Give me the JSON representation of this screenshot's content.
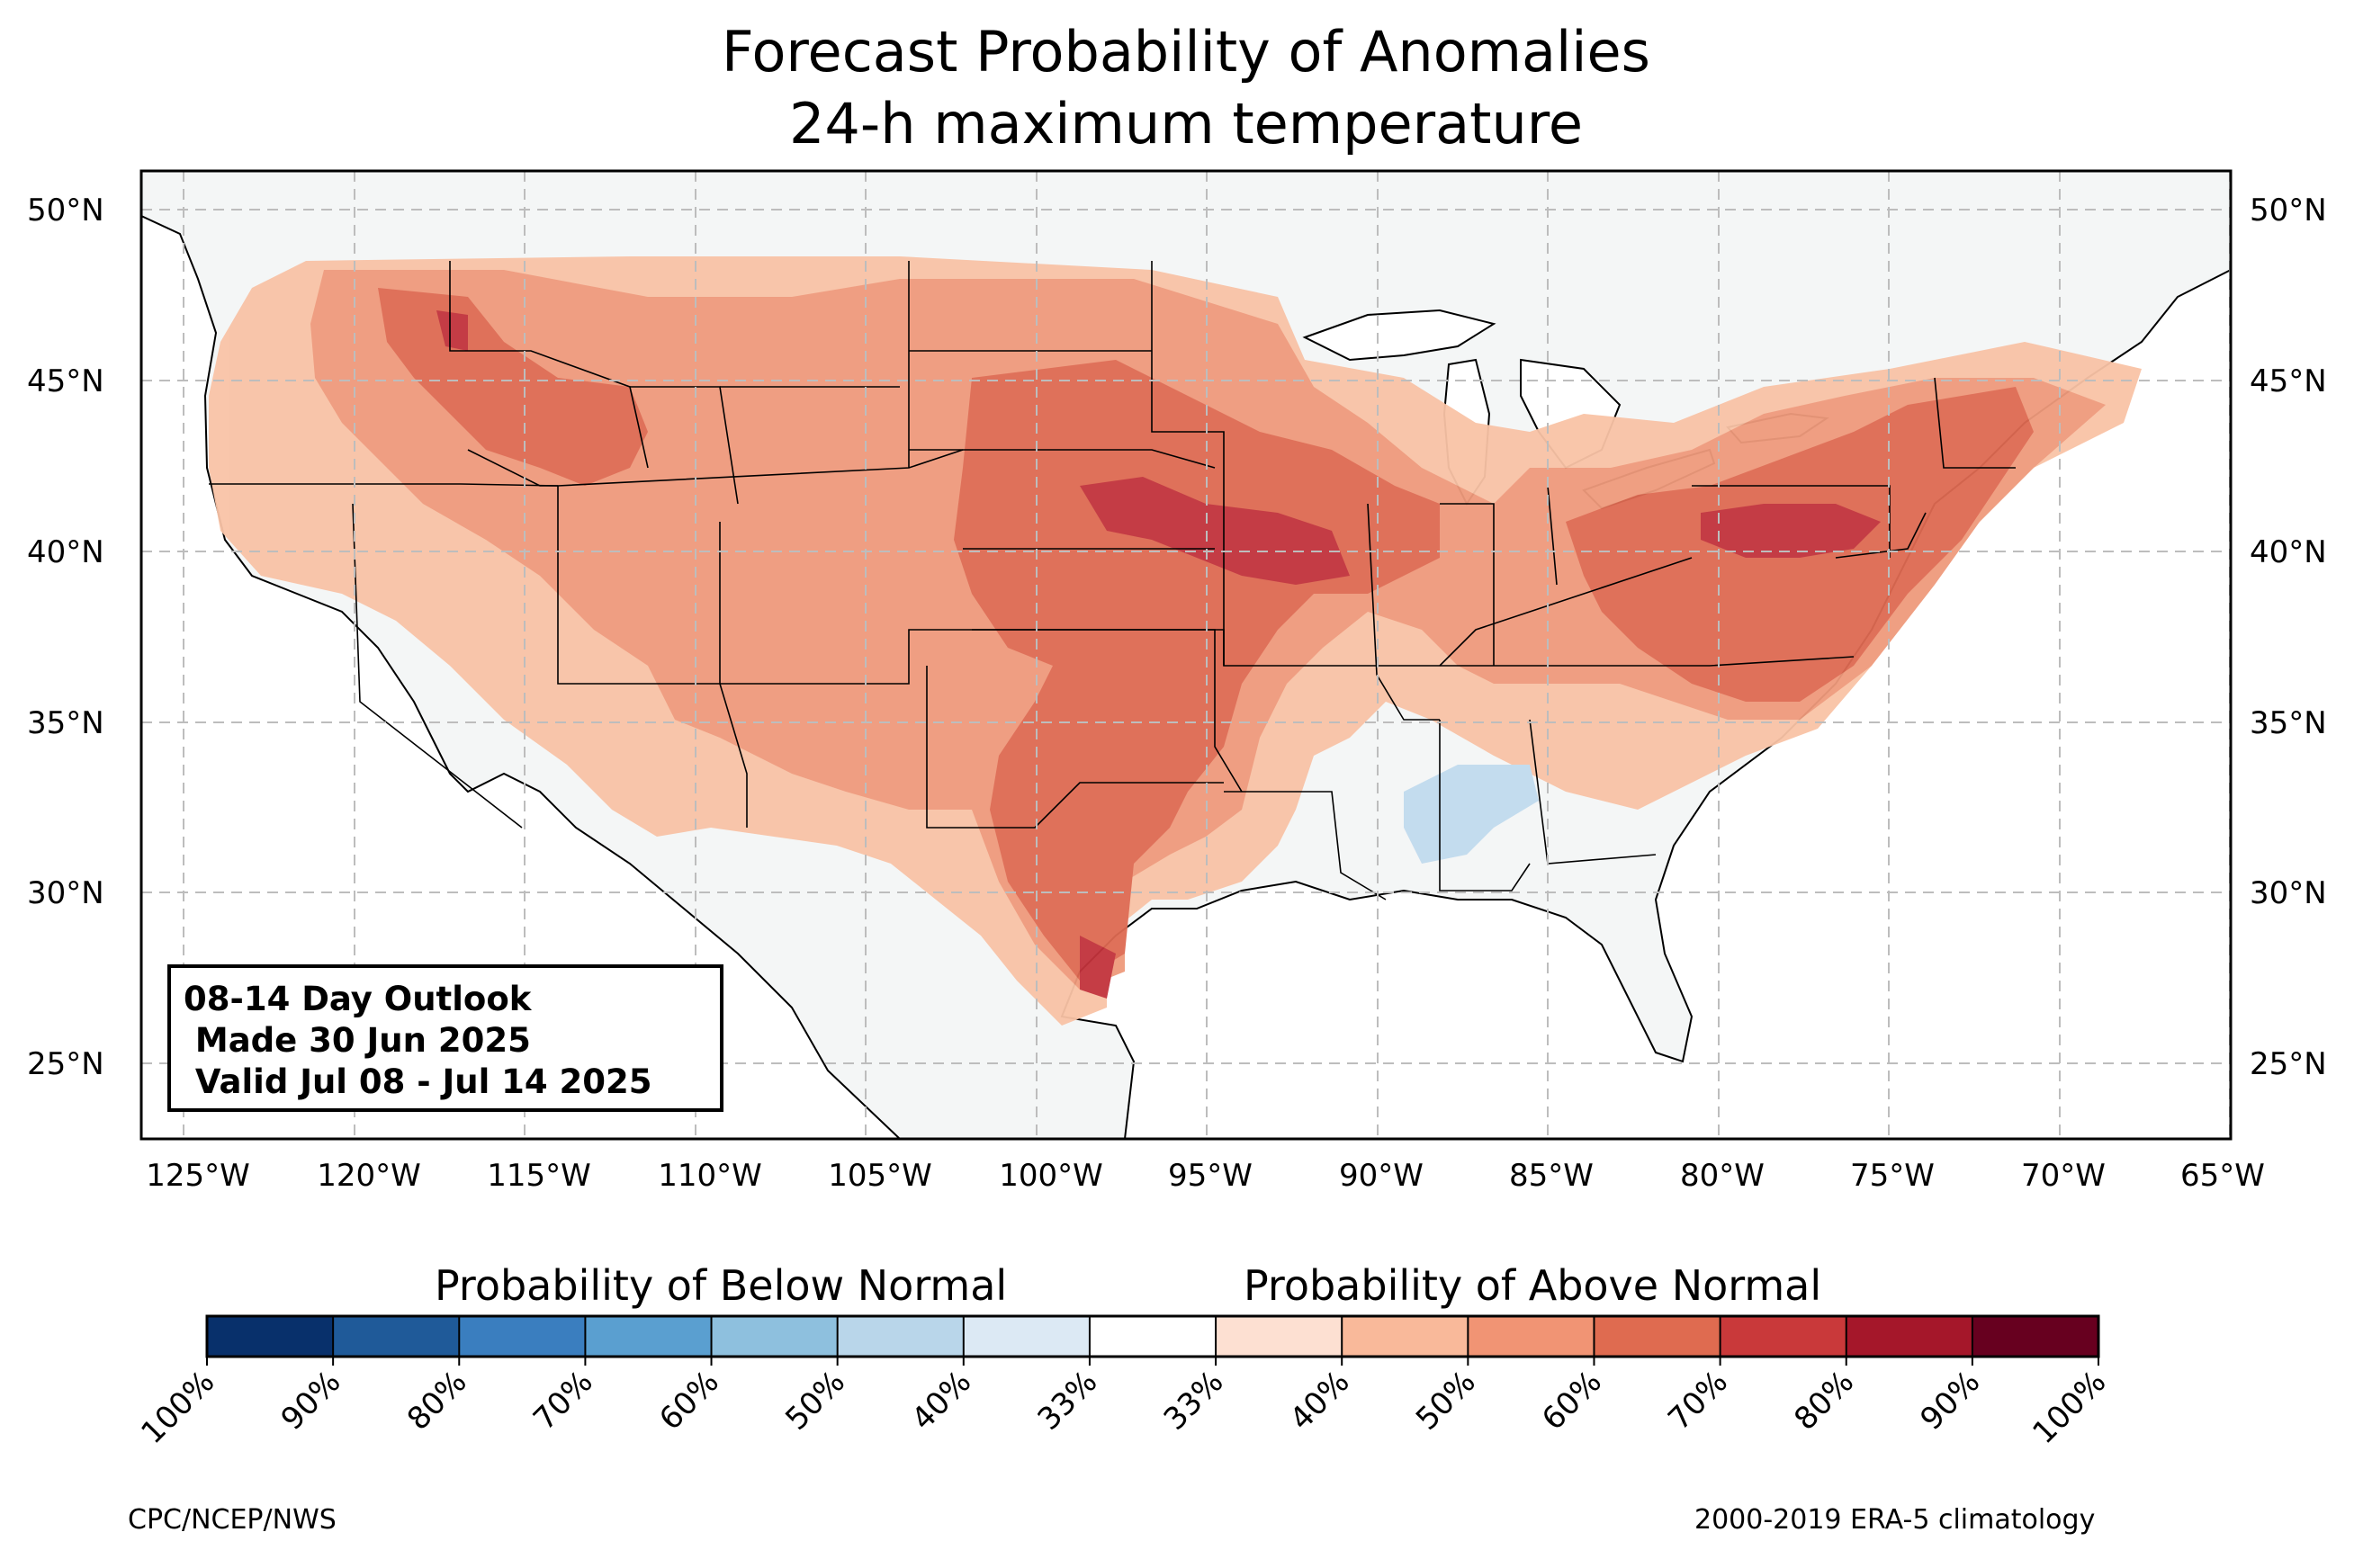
{
  "title_line1": "Forecast Probability of Anomalies",
  "title_line2": "24-h maximum temperature",
  "lat_labels": [
    "50°N",
    "45°N",
    "40°N",
    "35°N",
    "30°N",
    "25°N"
  ],
  "lon_labels": [
    "125°W",
    "120°W",
    "115°W",
    "110°W",
    "105°W",
    "100°W",
    "95°W",
    "90°W",
    "85°W",
    "80°W",
    "75°W",
    "70°W",
    "65°W"
  ],
  "outlook_box": {
    "line1": "08-14 Day Outlook",
    "line2": " Made 30 Jun 2025",
    "line3": " Valid Jul 08 - Jul 14 2025"
  },
  "colorbar": {
    "below_label": "Probability of Below Normal",
    "above_label": "Probability of Above Normal",
    "below_colors": [
      "#08306b",
      "#1f5a99",
      "#3a7ebf",
      "#5a9fd0",
      "#8ec0de",
      "#b9d6ea",
      "#dce9f4",
      "#ffffff"
    ],
    "above_colors": [
      "#fde0d2",
      "#f9b99a",
      "#f19474",
      "#df6b50",
      "#c9393a",
      "#a5172a",
      "#67001f"
    ],
    "tick_labels": [
      "100%",
      "90%",
      "80%",
      "70%",
      "60%",
      "50%",
      "40%",
      "33%",
      "33%",
      "40%",
      "50%",
      "60%",
      "70%",
      "80%",
      "90%",
      "100%"
    ]
  },
  "footer_left": "CPC/NCEP/NWS",
  "footer_right": "2000-2019 ERA-5 climatology",
  "colors": {
    "land": "#f4f6f6",
    "water": "#ffffff",
    "prob_40_50": "#f9c3a6",
    "prob_50_60": "#ef9a7c",
    "prob_60_70": "#de6a52",
    "prob_70_80": "#c2333c",
    "below_40_50": "#c3dcee"
  }
}
